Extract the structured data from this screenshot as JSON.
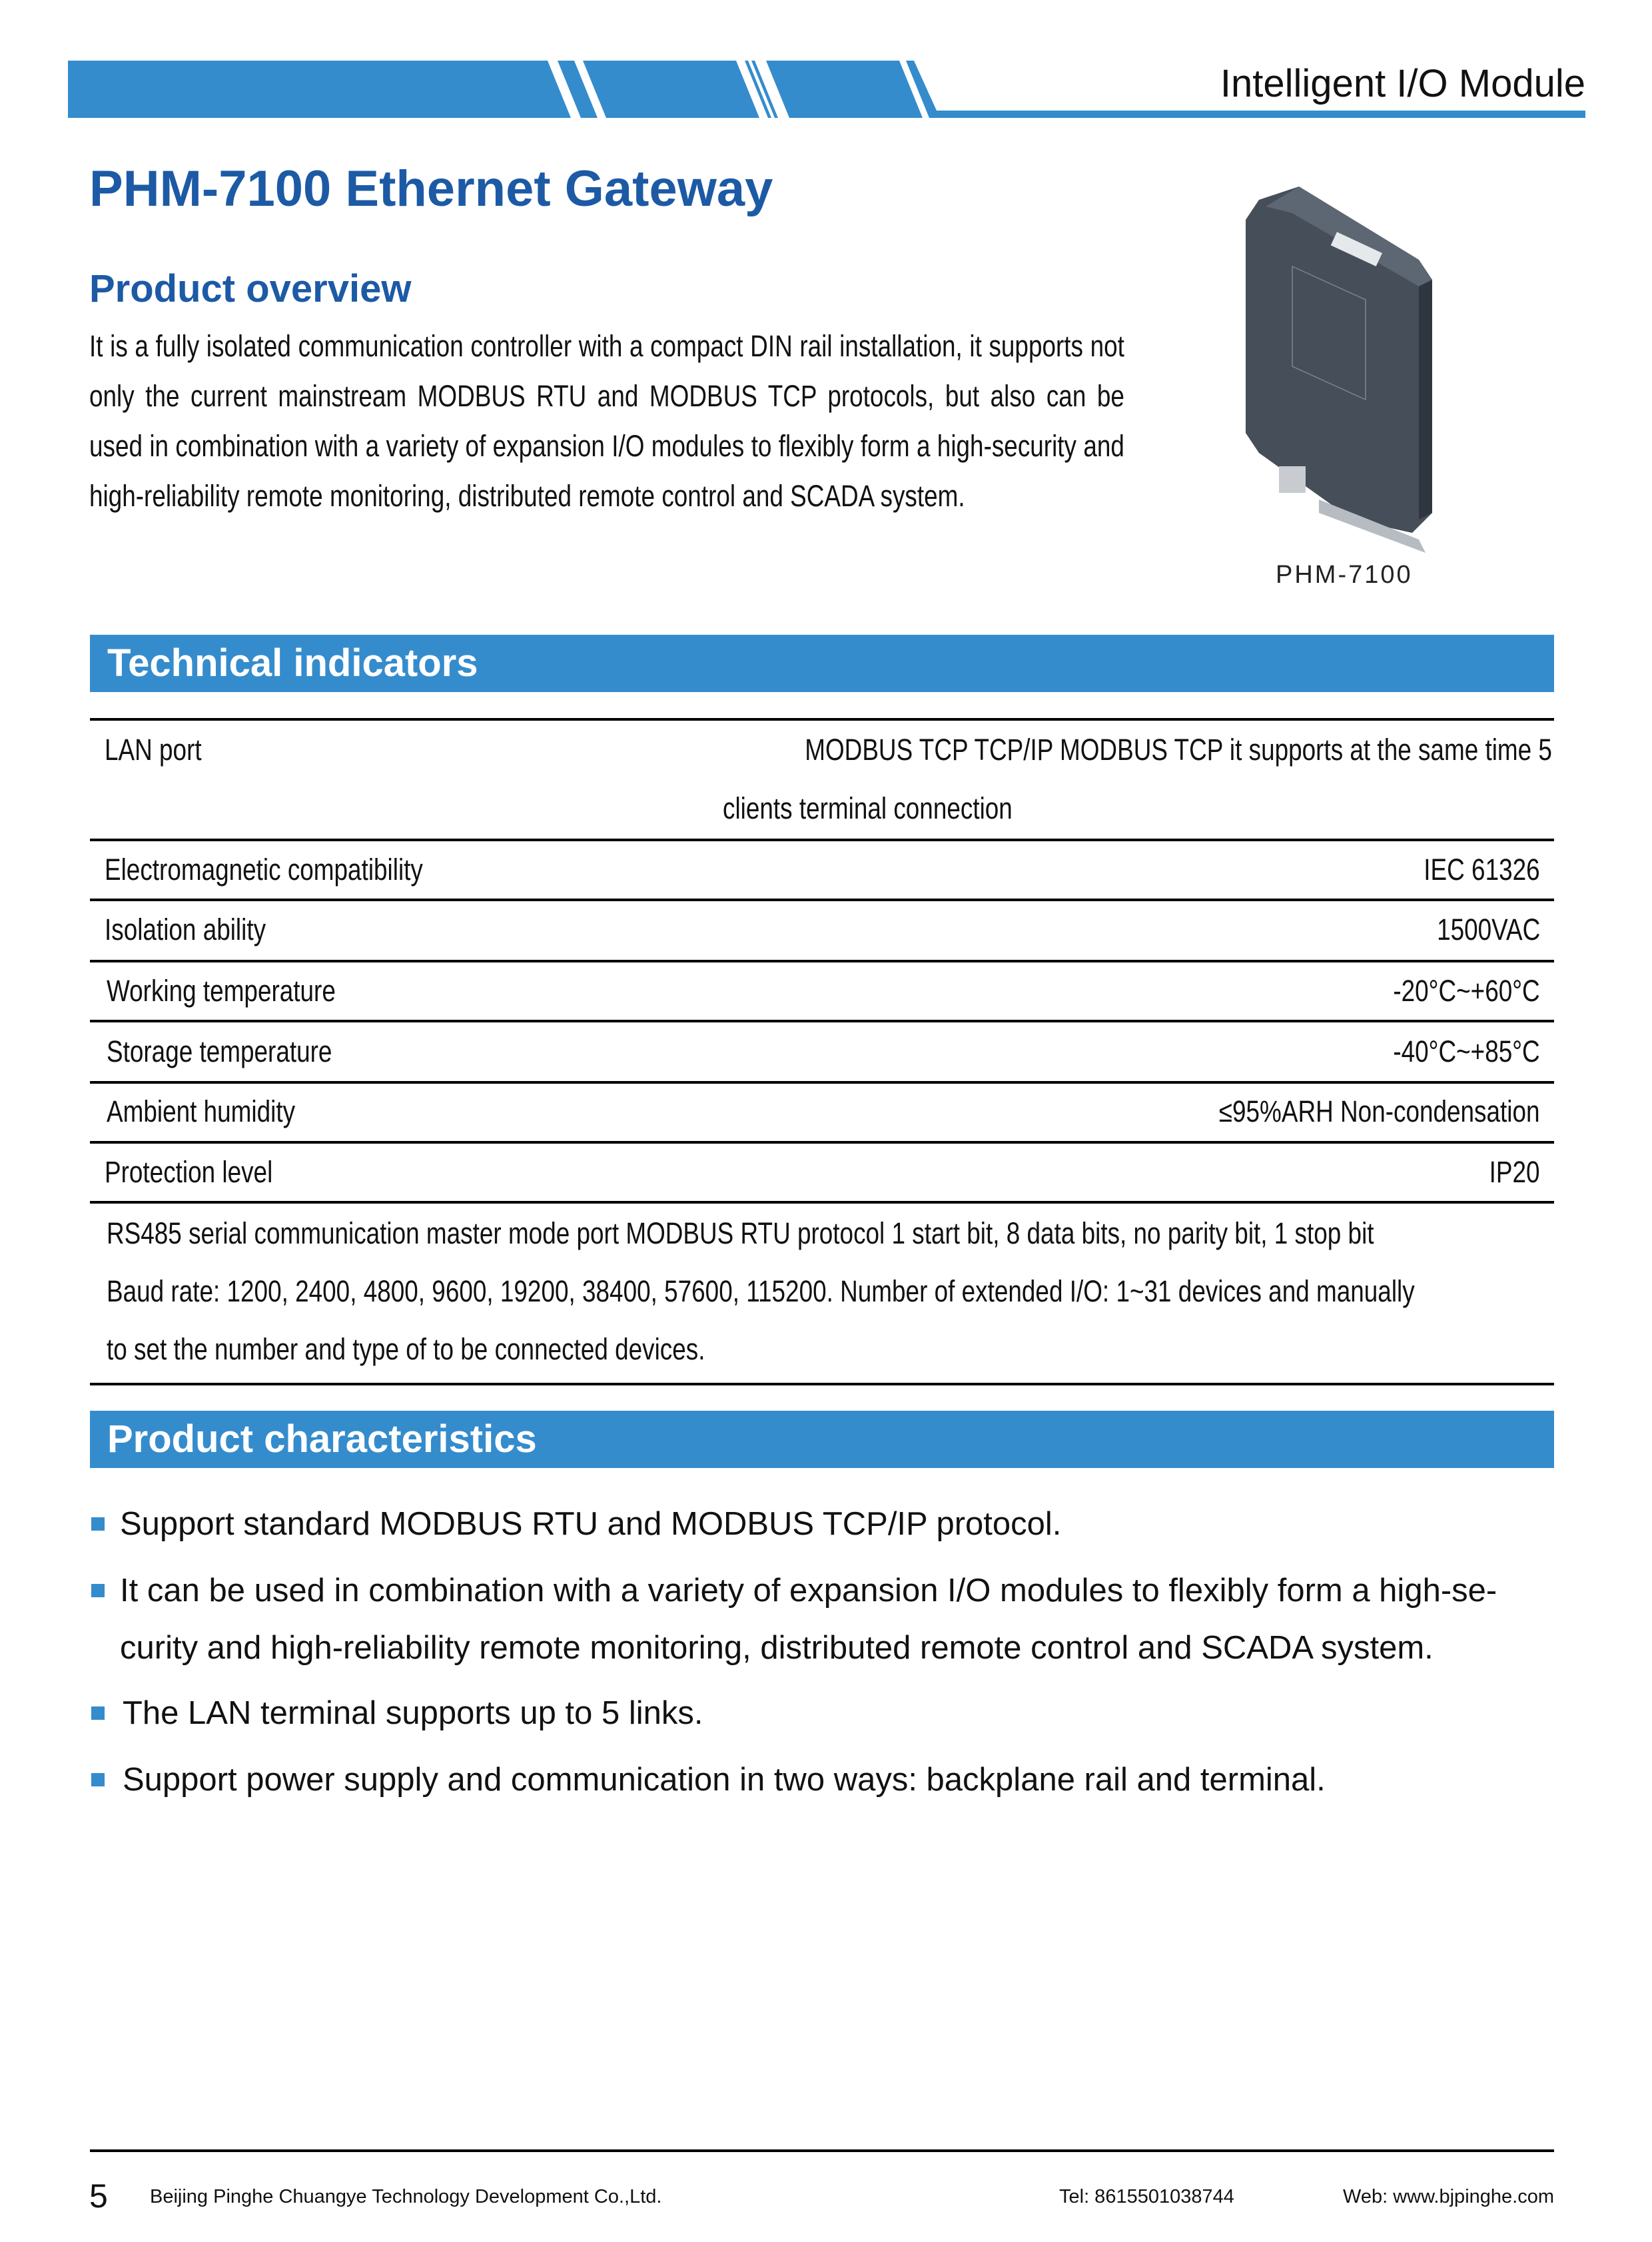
{
  "header": {
    "title": "Intelligent I/O Module",
    "accent_color": "#348ccd"
  },
  "page_title": "PHM-7100 Ethernet Gateway",
  "overview": {
    "heading": "Product overview",
    "text": "It is a fully isolated communication controller with a compact DIN rail installation, it supports not only the current mainstream MODBUS RTU and MODBUS TCP protocols, but also can be used in combination with a variety of expansion I/O modules to flexibly form a high-security and high-reliability remote monitoring, distributed remote control and SCADA system.",
    "image_caption": "PHM-7100"
  },
  "technical": {
    "heading": "Technical indicators",
    "rows": [
      {
        "label": "LAN port",
        "value_line1": "MODBUS TCP TCP/IP MODBUS TCP it supports at the same time 5",
        "value_line2": "clients terminal connection"
      },
      {
        "label": "Electromagnetic compatibility",
        "value": "IEC 61326"
      },
      {
        "label": "Isolation ability",
        "value": "1500VAC"
      },
      {
        "label": "Working temperature",
        "value": "-20°C~+60°C"
      },
      {
        "label": "Storage temperature",
        "value": "-40°C~+85°C"
      },
      {
        "label": "Ambient humidity",
        "value": "≤95%ARH Non-condensation"
      },
      {
        "label": "Protection level",
        "value": "IP20"
      }
    ],
    "rs485_lines": [
      "RS485 serial communication master mode port MODBUS RTU protocol 1 start bit, 8 data bits, no parity bit, 1 stop bit",
      "Baud rate: 1200, 2400, 4800, 9600, 19200, 38400, 57600, 115200. Number of extended I/O: 1~31 devices and manually",
      "to set the number and type of to be connected devices."
    ]
  },
  "characteristics": {
    "heading": "Product characteristics",
    "items": [
      {
        "lines": [
          "Support standard MODBUS RTU and MODBUS TCP/IP protocol."
        ]
      },
      {
        "lines": [
          "It can be used in combination with a variety of expansion I/O modules to flexibly form a high-se-",
          "curity and high-reliability remote monitoring, distributed remote control and SCADA system."
        ]
      },
      {
        "lines": [
          "The LAN terminal supports up to 5 links."
        ]
      },
      {
        "lines": [
          "Support power supply and communication in two ways: backplane rail and terminal."
        ]
      }
    ]
  },
  "footer": {
    "page_number": "5",
    "company": "Beijing Pinghe Chuangye Technology Development Co.,Ltd.",
    "tel": "Tel: 8615501038744",
    "web": "Web: www.bjpinghe.com"
  }
}
